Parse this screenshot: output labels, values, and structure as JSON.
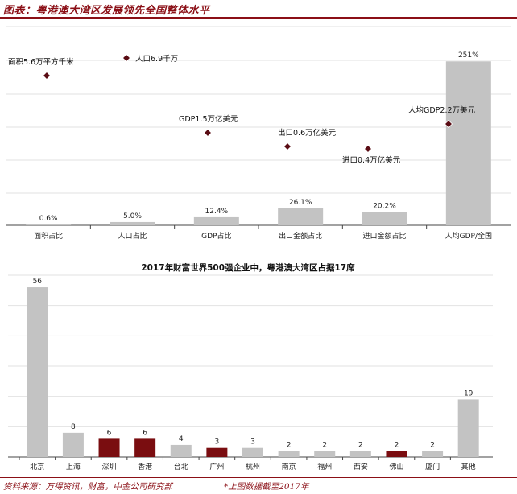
{
  "header": {
    "title": "图表：粤港澳大湾区发展领先全国整体水平"
  },
  "footer": {
    "source": "资料来源：万得资讯，财富，中金公司研究部",
    "note": "*上图数据截至2017年"
  },
  "colors": {
    "accent": "#8b0f16",
    "bar_gray": "#c3c3c3",
    "bar_red": "#7a0d10",
    "grid": "#e2e2e2",
    "marker": "#5a0c14"
  },
  "chart_data": [
    {
      "type": "bar",
      "title": "",
      "categories": [
        "面积占比",
        "人口占比",
        "GDP占比",
        "出口金额占比",
        "进口金额占比",
        "人均GDP/全国"
      ],
      "series": [
        {
          "values": [
            0.6,
            5.0,
            12.4,
            26.1,
            20.2,
            251
          ],
          "value_labels": [
            "0.6%",
            "5.0%",
            "12.4%",
            "26.1%",
            "20.2%",
            "251%"
          ]
        }
      ],
      "annotations": [
        {
          "category": "面积占比",
          "text": "面积5.6万平方千米"
        },
        {
          "category": "人口占比",
          "text": "人口6.9千万"
        },
        {
          "category": "GDP占比",
          "text": "GDP1.5万亿美元"
        },
        {
          "category": "出口金额占比",
          "text": "出口0.6万亿美元"
        },
        {
          "category": "进口金额占比",
          "text": "进口0.4万亿美元"
        },
        {
          "category": "人均GDP/全国",
          "text": "人均GDP2.2万美元"
        }
      ],
      "grid": true,
      "legend": "none"
    },
    {
      "type": "bar",
      "title": "2017年财富世界500强企业中，粤港澳大湾区占据17席",
      "categories": [
        "北京",
        "上海",
        "深圳",
        "香港",
        "台北",
        "广州",
        "杭州",
        "南京",
        "福州",
        "西安",
        "佛山",
        "厦门",
        "其他"
      ],
      "series": [
        {
          "values": [
            56,
            8,
            6,
            6,
            4,
            3,
            3,
            2,
            2,
            2,
            2,
            2,
            19
          ],
          "highlight": [
            false,
            false,
            true,
            true,
            false,
            true,
            false,
            false,
            false,
            false,
            true,
            false,
            false
          ]
        }
      ],
      "ylim": [
        0,
        60
      ],
      "grid": true,
      "legend": "none"
    }
  ]
}
